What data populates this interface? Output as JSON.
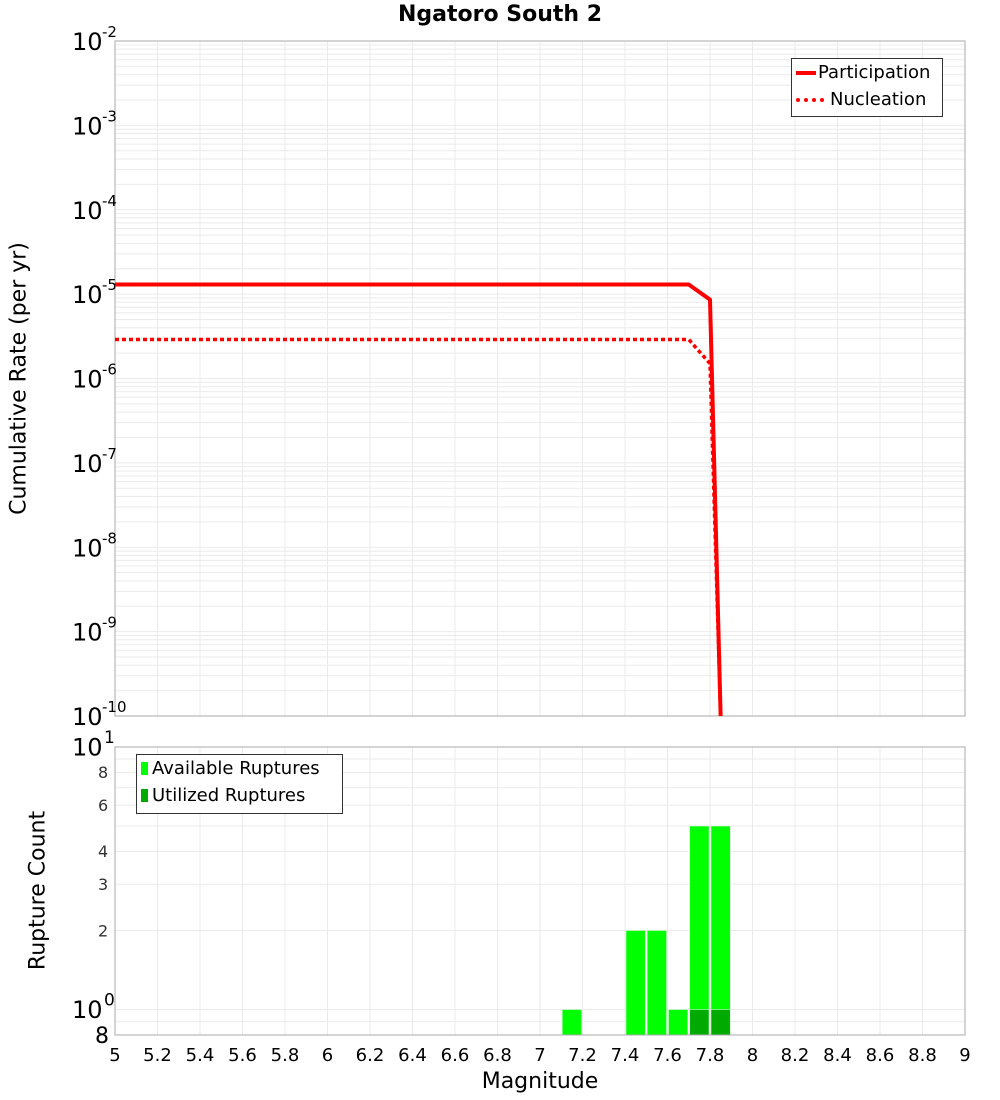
{
  "chart_data": [
    {
      "type": "line",
      "title": "Ngatoro South 2",
      "xlabel": "Magnitude",
      "ylabel": "Cumulative Rate (per yr)",
      "yscale": "log",
      "xlim": [
        5,
        9
      ],
      "ylim": [
        1e-10,
        0.01
      ],
      "y_tick_labels": [
        "10^-2",
        "10^-3",
        "10^-4",
        "10^-5",
        "10^-6",
        "10^-7",
        "10^-8",
        "10^-9",
        "10^-10"
      ],
      "grid": true,
      "legend_position": "top-right",
      "series": [
        {
          "name": "Participation",
          "style": "solid",
          "color": "#ff0000",
          "x": [
            5.0,
            7.7,
            7.8,
            7.85
          ],
          "y": [
            1.3e-05,
            1.3e-05,
            8.6e-06,
            1e-10
          ]
        },
        {
          "name": "Nucleation",
          "style": "dotted",
          "color": "#ff0000",
          "x": [
            5.0,
            7.7,
            7.8,
            7.85
          ],
          "y": [
            2.9e-06,
            2.9e-06,
            1.5e-06,
            1e-10
          ]
        }
      ]
    },
    {
      "type": "bar",
      "xlabel": "Magnitude",
      "ylabel": "Rupture Count",
      "yscale": "log",
      "xlim": [
        5,
        9
      ],
      "ylim": [
        0.8,
        10
      ],
      "x_tick_labels": [
        "5",
        "5.2",
        "5.4",
        "5.6",
        "5.8",
        "6",
        "6.2",
        "6.4",
        "6.6",
        "6.8",
        "7",
        "7.2",
        "7.4",
        "7.6",
        "7.8",
        "8",
        "8.2",
        "8.4",
        "8.6",
        "8.8",
        "9"
      ],
      "y_tick_labels": [
        "10^1",
        "8",
        "6",
        "4",
        "3",
        "2",
        "10^0",
        "8"
      ],
      "grid": true,
      "legend_position": "top-left",
      "bin_width": 0.1,
      "series": [
        {
          "name": "Available Ruptures",
          "color": "#00ff00",
          "x": [
            7.15,
            7.45,
            7.55,
            7.65,
            7.75,
            7.85
          ],
          "values": [
            1,
            2,
            2,
            1,
            5,
            5
          ]
        },
        {
          "name": "Utilized Ruptures",
          "color": "#00aa00",
          "x": [
            7.75,
            7.85
          ],
          "values": [
            1,
            1
          ]
        }
      ]
    }
  ],
  "labels": {
    "title": "Ngatoro South 2",
    "top_ylabel": "Cumulative Rate (per yr)",
    "bottom_ylabel": "Rupture Count",
    "xlabel": "Magnitude",
    "legend_top": [
      "Participation",
      "Nucleation"
    ],
    "legend_bottom": [
      "Available Ruptures",
      "Utilized Ruptures"
    ]
  }
}
